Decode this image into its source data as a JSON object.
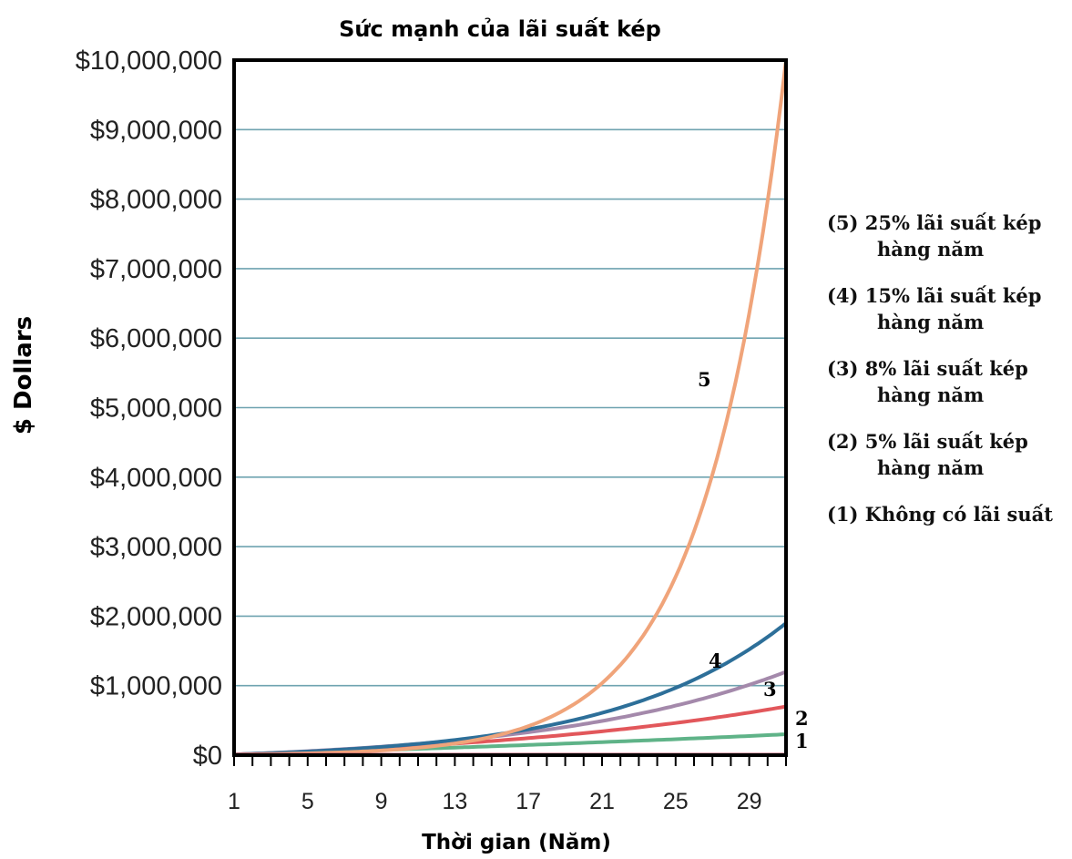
{
  "chart_data": {
    "type": "line",
    "title": "Sức mạnh của lãi suất kép",
    "xlabel": "Thời gian (Năm)",
    "ylabel": "$ Dollars",
    "x_ticks": [
      "1",
      "5",
      "9",
      "13",
      "17",
      "21",
      "25",
      "29"
    ],
    "y_ticks": [
      "$0",
      "$1,000,000",
      "$2,000,000",
      "$3,000,000",
      "$4,000,000",
      "$5,000,000",
      "$6,000,000",
      "$7,000,000",
      "$8,000,000",
      "$9,000,000",
      "$10,000,000"
    ],
    "xlim": [
      1,
      31
    ],
    "ylim": [
      0,
      10000000
    ],
    "grid": true,
    "series": [
      {
        "id": "1",
        "color": "#5fb388",
        "x": [
          1,
          31
        ],
        "y": [
          10000,
          300000
        ]
      },
      {
        "id": "2",
        "color": "#e2575b",
        "x": [
          1,
          31
        ],
        "y": [
          10000,
          700000
        ]
      },
      {
        "id": "3",
        "color": "#a489ab",
        "x": [
          1,
          31
        ],
        "y": [
          10000,
          1200000
        ]
      },
      {
        "id": "4",
        "color": "#2d6f99",
        "x": [
          1,
          31
        ],
        "y": [
          10000,
          1900000
        ]
      },
      {
        "id": "5",
        "color": "#f0a47a",
        "x": [
          1,
          31
        ],
        "y": [
          10000,
          10000000
        ]
      }
    ]
  },
  "series_labels": [
    "1",
    "2",
    "3",
    "4",
    "5"
  ],
  "legend": [
    {
      "line1": "(5) 25% lãi suất kép",
      "line2": "hàng năm"
    },
    {
      "line1": "(4) 15% lãi suất kép",
      "line2": "hàng năm"
    },
    {
      "line1": "(3) 8% lãi suất kép",
      "line2": "hàng năm"
    },
    {
      "line1": "(2) 5% lãi suất kép",
      "line2": "hàng năm"
    },
    {
      "line1": "(1) Không có lãi suất",
      "line2": ""
    }
  ]
}
